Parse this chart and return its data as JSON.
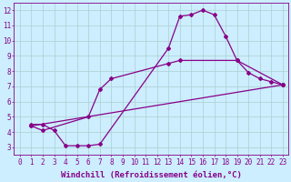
{
  "xlabel": "Windchill (Refroidissement éolien,°C)",
  "bg_color": "#cceeff",
  "grid_color": "#aacfcf",
  "line_color": "#880088",
  "xlim": [
    -0.5,
    23.5
  ],
  "ylim": [
    2.5,
    12.5
  ],
  "xticks": [
    0,
    1,
    2,
    3,
    4,
    5,
    6,
    7,
    8,
    9,
    10,
    11,
    12,
    13,
    14,
    15,
    16,
    17,
    18,
    19,
    20,
    21,
    22,
    23
  ],
  "yticks": [
    3,
    4,
    5,
    6,
    7,
    8,
    9,
    10,
    11,
    12
  ],
  "line1_x": [
    1,
    2,
    3,
    4,
    5,
    6,
    7,
    13,
    14,
    15,
    16,
    17,
    18,
    19,
    20,
    21,
    22,
    23
  ],
  "line1_y": [
    4.5,
    4.5,
    4.1,
    3.1,
    3.1,
    3.1,
    3.2,
    9.5,
    11.6,
    11.7,
    12.0,
    11.7,
    10.3,
    8.7,
    7.9,
    7.5,
    7.3,
    7.1
  ],
  "line2_x": [
    1,
    2,
    6,
    7,
    8,
    13,
    14,
    19,
    23
  ],
  "line2_y": [
    4.4,
    4.1,
    5.0,
    6.8,
    7.5,
    8.5,
    8.7,
    8.7,
    7.1
  ],
  "line3_x": [
    1,
    23
  ],
  "line3_y": [
    4.4,
    7.1
  ],
  "marker": "D",
  "markersize": 2.0,
  "linewidth": 0.9,
  "xlabel_fontsize": 6.5,
  "tick_fontsize": 5.5
}
